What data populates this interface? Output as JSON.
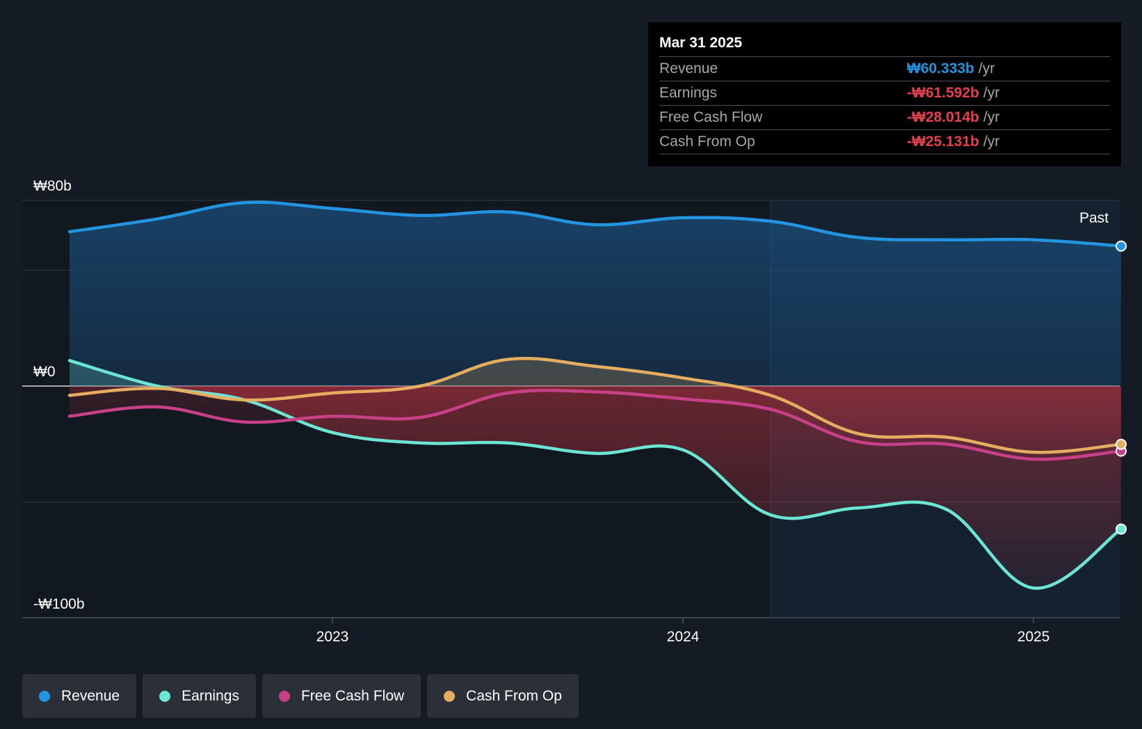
{
  "chart_data": {
    "type": "area",
    "currency_symbol": "₩",
    "y_unit": "b",
    "ylim": [
      -100,
      80
    ],
    "yticks_labeled": [
      {
        "value": 80,
        "label": "₩80b"
      },
      {
        "value": 0,
        "label": "₩0"
      },
      {
        "value": -100,
        "label": "-₩100b"
      }
    ],
    "ygrid": [
      80,
      50,
      0,
      -50
    ],
    "x_range": [
      2022.12,
      2025.25
    ],
    "x_ticks": [
      {
        "value": 2023.0,
        "label": "2023"
      },
      {
        "value": 2024.0,
        "label": "2024"
      },
      {
        "value": 2025.0,
        "label": "2025"
      }
    ],
    "past_boundary": 2024.25,
    "past_label": "Past",
    "series": [
      {
        "name": "Revenue",
        "color": "#2394df",
        "points": [
          [
            2022.25,
            66.5
          ],
          [
            2022.5,
            72
          ],
          [
            2022.75,
            79
          ],
          [
            2023.0,
            76.5
          ],
          [
            2023.25,
            73.5
          ],
          [
            2023.5,
            75
          ],
          [
            2023.75,
            69.5
          ],
          [
            2024.0,
            72.5
          ],
          [
            2024.25,
            71
          ],
          [
            2024.5,
            64
          ],
          [
            2024.75,
            63
          ],
          [
            2025.0,
            63
          ],
          [
            2025.25,
            60.3
          ]
        ]
      },
      {
        "name": "Earnings",
        "color": "#6ce5d4",
        "points": [
          [
            2022.25,
            11
          ],
          [
            2022.5,
            0
          ],
          [
            2022.75,
            -6
          ],
          [
            2023.0,
            -20
          ],
          [
            2023.25,
            -24.5
          ],
          [
            2023.5,
            -24.5
          ],
          [
            2023.75,
            -29
          ],
          [
            2024.0,
            -27.5
          ],
          [
            2024.25,
            -55.5
          ],
          [
            2024.5,
            -52.5
          ],
          [
            2024.75,
            -53
          ],
          [
            2025.0,
            -87
          ],
          [
            2025.25,
            -61.6
          ]
        ]
      },
      {
        "name": "Free Cash Flow",
        "color": "#c84188",
        "points": [
          [
            2022.25,
            -13
          ],
          [
            2022.5,
            -9
          ],
          [
            2022.75,
            -15.5
          ],
          [
            2023.0,
            -13
          ],
          [
            2023.25,
            -13.5
          ],
          [
            2023.5,
            -3
          ],
          [
            2023.75,
            -2.5
          ],
          [
            2024.0,
            -5.5
          ],
          [
            2024.25,
            -10
          ],
          [
            2024.5,
            -24
          ],
          [
            2024.75,
            -25
          ],
          [
            2025.0,
            -31.5
          ],
          [
            2025.25,
            -28
          ]
        ]
      },
      {
        "name": "Cash From Op",
        "color": "#e5ad5f",
        "points": [
          [
            2022.25,
            -4
          ],
          [
            2022.5,
            -1
          ],
          [
            2022.75,
            -6
          ],
          [
            2023.0,
            -3
          ],
          [
            2023.25,
            0
          ],
          [
            2023.5,
            11.5
          ],
          [
            2023.75,
            8.5
          ],
          [
            2024.0,
            3.5
          ],
          [
            2024.25,
            -4
          ],
          [
            2024.5,
            -20.5
          ],
          [
            2024.75,
            -22
          ],
          [
            2025.0,
            -28.5
          ],
          [
            2025.25,
            -25.1
          ]
        ]
      }
    ]
  },
  "tooltip": {
    "date": "Mar 31 2025",
    "rows": [
      {
        "label": "Revenue",
        "value": "₩60.333b",
        "unit": "/yr",
        "color": "#2394df"
      },
      {
        "label": "Earnings",
        "value": "-₩61.592b",
        "unit": "/yr",
        "color": "#e6404d"
      },
      {
        "label": "Free Cash Flow",
        "value": "-₩28.014b",
        "unit": "/yr",
        "color": "#e6404d"
      },
      {
        "label": "Cash From Op",
        "value": "-₩25.131b",
        "unit": "/yr",
        "color": "#e6404d"
      }
    ]
  },
  "legend": [
    {
      "label": "Revenue",
      "color": "#2394df"
    },
    {
      "label": "Earnings",
      "color": "#6ce5d4"
    },
    {
      "label": "Free Cash Flow",
      "color": "#c84188"
    },
    {
      "label": "Cash From Op",
      "color": "#e5ad5f"
    }
  ]
}
